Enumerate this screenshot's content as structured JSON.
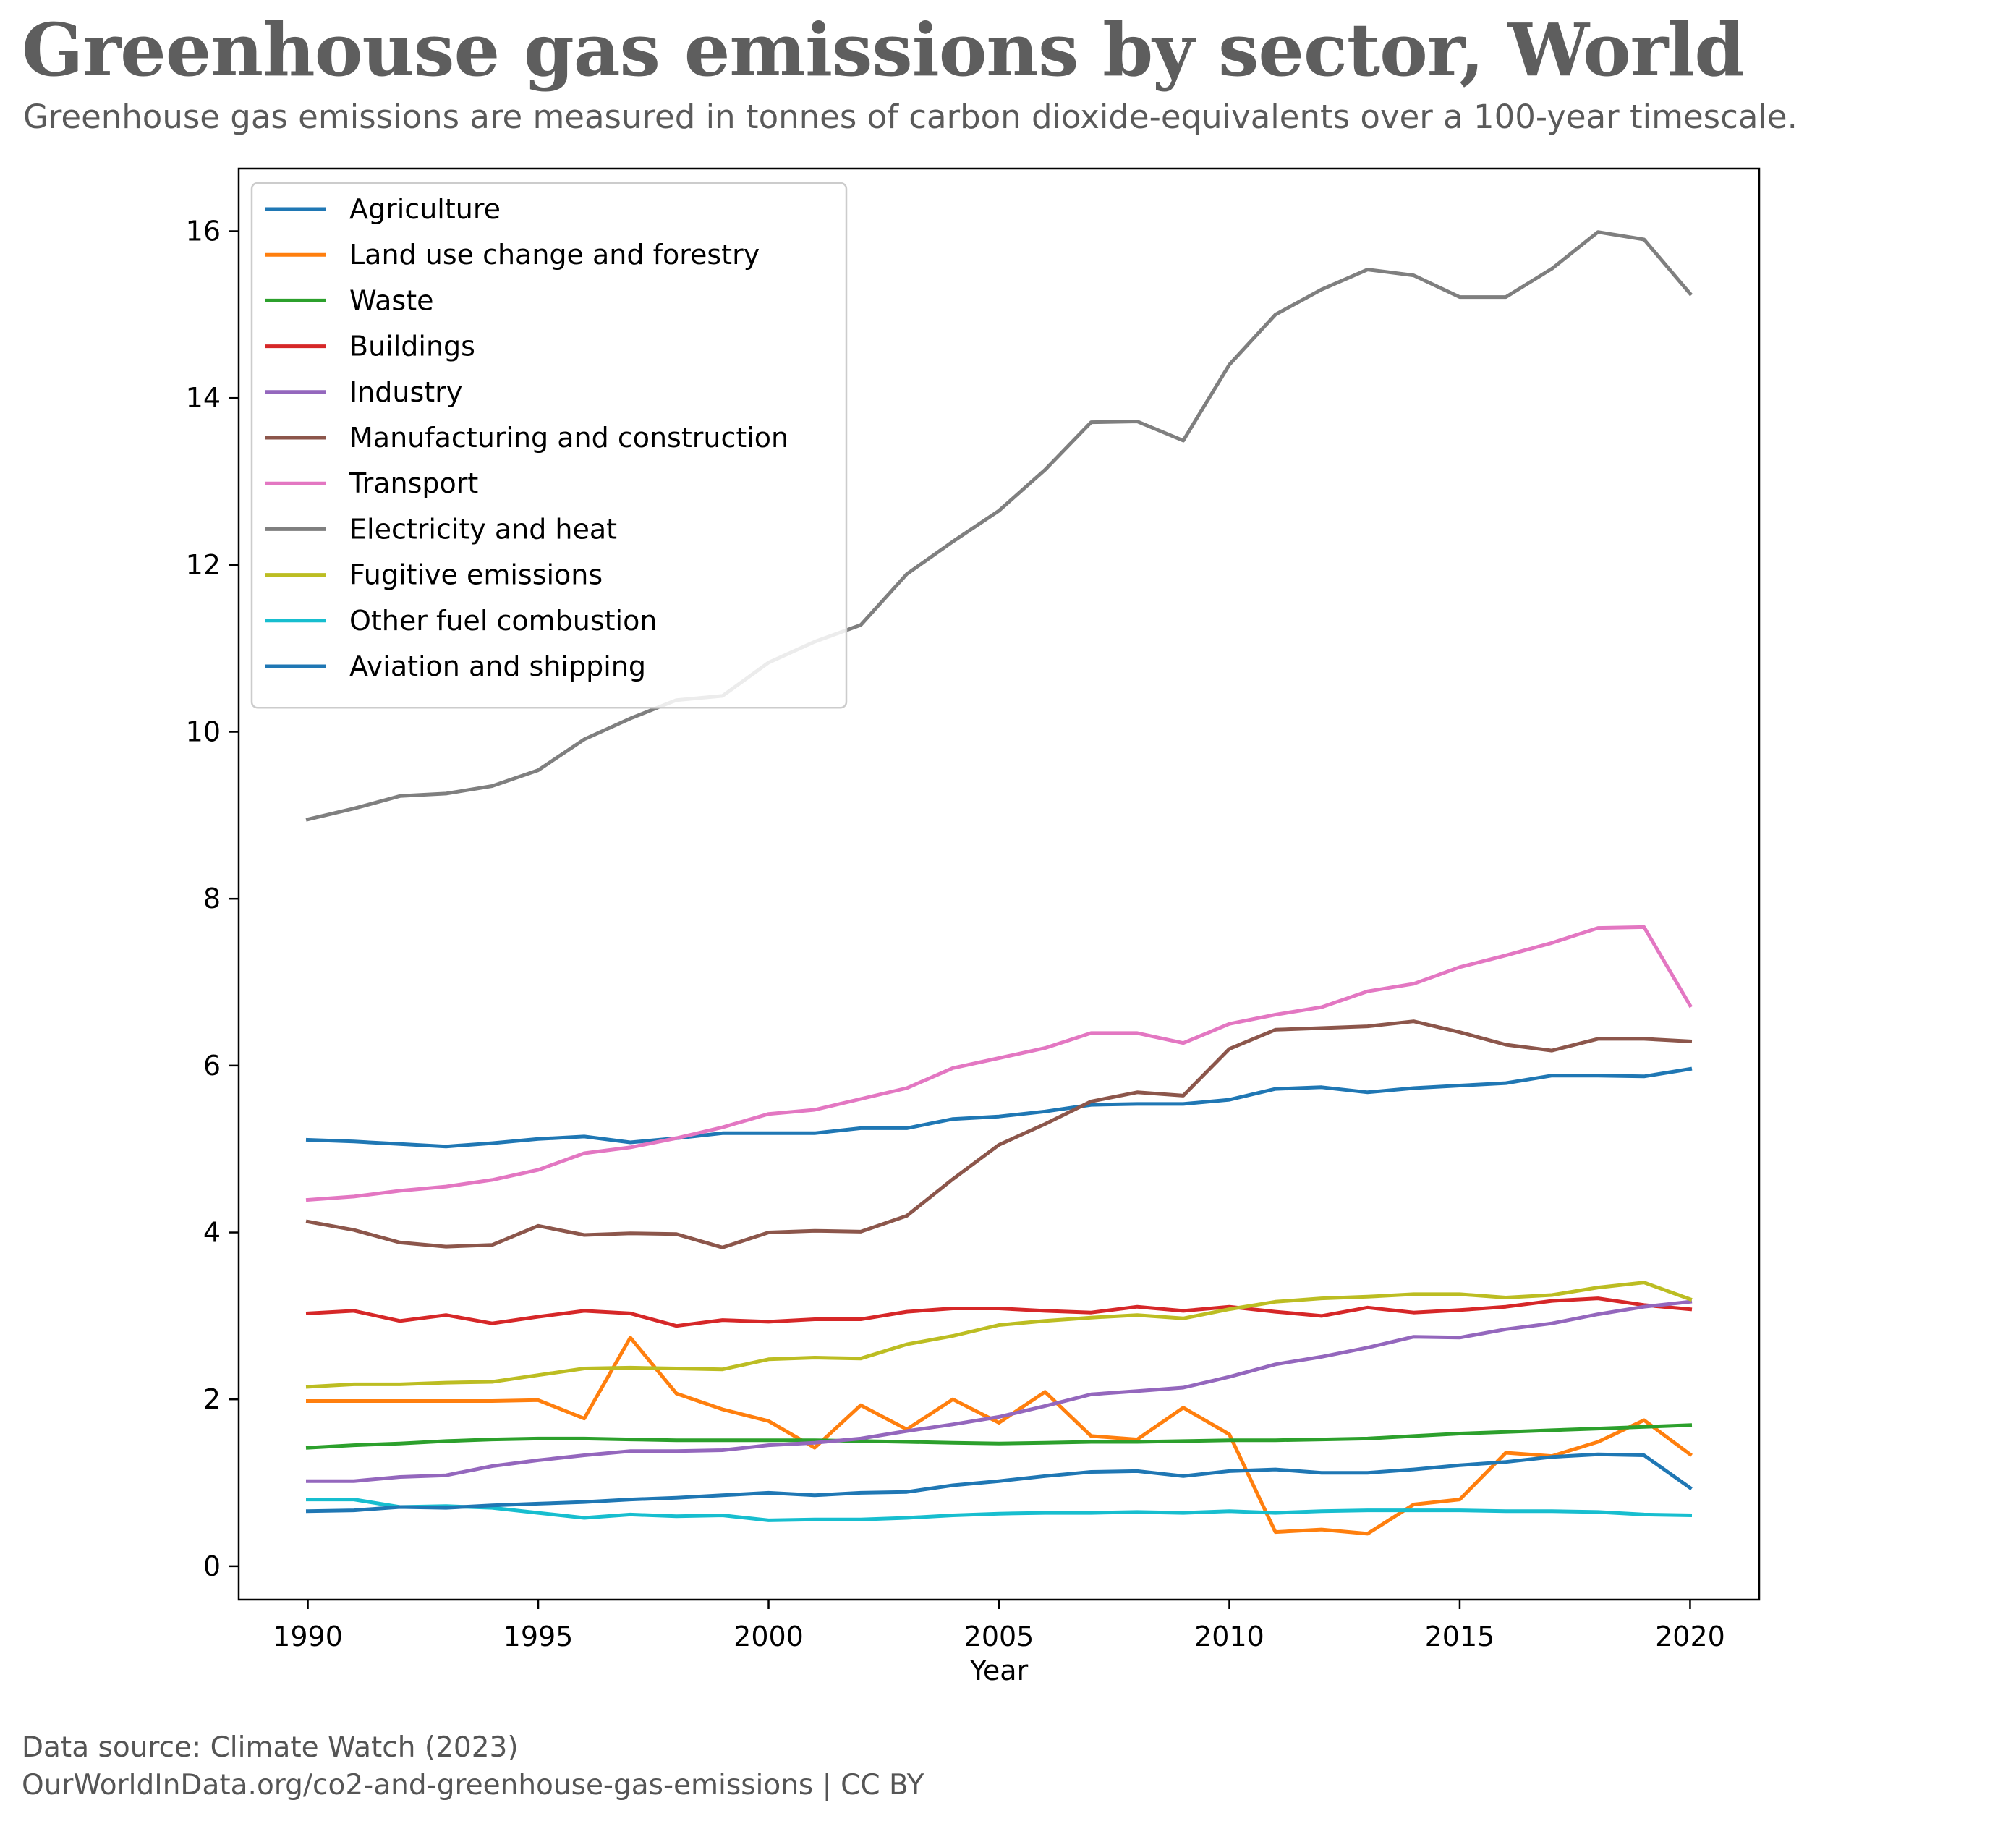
{
  "header": {
    "title": "Greenhouse gas emissions by sector, World",
    "subtitle": "Greenhouse gas emissions are measured in tonnes of carbon dioxide-equivalents over a 100-year timescale."
  },
  "footer": {
    "source": "Data source: Climate Watch (2023)",
    "url": "OurWorldInData.org/co2-and-greenhouse-gas-emissions | CC BY"
  },
  "chart_data": {
    "type": "line",
    "xlabel": "Year",
    "ylabel": "",
    "xlim": [
      1988.5,
      2021.5
    ],
    "ylim": [
      -0.4,
      16.75
    ],
    "x_ticks": [
      1990,
      1995,
      2000,
      2005,
      2010,
      2015,
      2020
    ],
    "y_ticks": [
      0,
      2,
      4,
      6,
      8,
      10,
      12,
      14,
      16
    ],
    "grid": false,
    "legend_position": "top-left",
    "x": [
      1990,
      1991,
      1992,
      1993,
      1994,
      1995,
      1996,
      1997,
      1998,
      1999,
      2000,
      2001,
      2002,
      2003,
      2004,
      2005,
      2006,
      2007,
      2008,
      2009,
      2010,
      2011,
      2012,
      2013,
      2014,
      2015,
      2016,
      2017,
      2018,
      2019,
      2020
    ],
    "series": [
      {
        "name": "Agriculture",
        "color": "#1f77b4",
        "values": [
          5.11,
          5.09,
          5.06,
          5.03,
          5.07,
          5.12,
          5.15,
          5.08,
          5.13,
          5.19,
          5.19,
          5.19,
          5.25,
          5.25,
          5.36,
          5.39,
          5.45,
          5.53,
          5.54,
          5.54,
          5.59,
          5.72,
          5.74,
          5.68,
          5.73,
          5.76,
          5.79,
          5.88,
          5.88,
          5.87,
          5.96
        ]
      },
      {
        "name": "Land use change and forestry",
        "color": "#ff7f0e",
        "values": [
          1.98,
          1.98,
          1.98,
          1.98,
          1.98,
          1.99,
          1.77,
          2.74,
          2.07,
          1.88,
          1.74,
          1.42,
          1.93,
          1.64,
          2.0,
          1.72,
          2.09,
          1.56,
          1.52,
          1.9,
          1.58,
          0.41,
          0.44,
          0.39,
          0.74,
          0.8,
          1.36,
          1.32,
          1.49,
          1.75,
          1.34
        ]
      },
      {
        "name": "Waste",
        "color": "#2ca02c",
        "values": [
          1.42,
          1.45,
          1.47,
          1.5,
          1.52,
          1.53,
          1.53,
          1.52,
          1.51,
          1.51,
          1.51,
          1.51,
          1.5,
          1.49,
          1.48,
          1.47,
          1.48,
          1.49,
          1.49,
          1.5,
          1.51,
          1.51,
          1.52,
          1.53,
          1.56,
          1.59,
          1.61,
          1.63,
          1.65,
          1.67,
          1.69
        ]
      },
      {
        "name": "Buildings",
        "color": "#d62728",
        "values": [
          3.03,
          3.06,
          2.94,
          3.01,
          2.91,
          2.99,
          3.06,
          3.03,
          2.88,
          2.95,
          2.93,
          2.96,
          2.96,
          3.05,
          3.09,
          3.09,
          3.06,
          3.04,
          3.11,
          3.06,
          3.11,
          3.05,
          3.0,
          3.1,
          3.04,
          3.07,
          3.11,
          3.18,
          3.21,
          3.13,
          3.08
        ]
      },
      {
        "name": "Industry",
        "color": "#9467bd",
        "values": [
          1.02,
          1.02,
          1.07,
          1.09,
          1.2,
          1.27,
          1.33,
          1.38,
          1.38,
          1.39,
          1.45,
          1.48,
          1.53,
          1.62,
          1.7,
          1.79,
          1.92,
          2.06,
          2.1,
          2.14,
          2.27,
          2.42,
          2.51,
          2.62,
          2.75,
          2.74,
          2.84,
          2.91,
          3.02,
          3.11,
          3.17
        ]
      },
      {
        "name": "Manufacturing and construction",
        "color": "#8c564b",
        "values": [
          4.13,
          4.03,
          3.88,
          3.83,
          3.85,
          4.08,
          3.97,
          3.99,
          3.98,
          3.82,
          4.0,
          4.02,
          4.01,
          4.2,
          4.64,
          5.05,
          5.3,
          5.57,
          5.68,
          5.64,
          6.2,
          6.43,
          6.45,
          6.47,
          6.53,
          6.4,
          6.25,
          6.18,
          6.32,
          6.32,
          6.29
        ]
      },
      {
        "name": "Transport",
        "color": "#e377c2",
        "values": [
          4.39,
          4.43,
          4.5,
          4.55,
          4.63,
          4.75,
          4.95,
          5.02,
          5.13,
          5.26,
          5.42,
          5.47,
          5.6,
          5.73,
          5.97,
          6.09,
          6.21,
          6.39,
          6.39,
          6.27,
          6.5,
          6.61,
          6.7,
          6.89,
          6.98,
          7.18,
          7.32,
          7.47,
          7.65,
          7.66,
          6.72
        ]
      },
      {
        "name": "Electricity and heat",
        "color": "#7f7f7f",
        "values": [
          8.95,
          9.08,
          9.23,
          9.26,
          9.35,
          9.54,
          9.91,
          10.16,
          10.38,
          10.43,
          10.83,
          11.08,
          11.28,
          11.89,
          12.28,
          12.65,
          13.14,
          13.71,
          13.72,
          13.49,
          14.4,
          15.0,
          15.3,
          15.54,
          15.47,
          15.21,
          15.21,
          15.55,
          15.99,
          15.9,
          15.25
        ]
      },
      {
        "name": "Fugitive emissions",
        "color": "#bcbd22",
        "values": [
          2.15,
          2.18,
          2.18,
          2.2,
          2.21,
          2.29,
          2.37,
          2.38,
          2.37,
          2.36,
          2.48,
          2.5,
          2.49,
          2.66,
          2.76,
          2.89,
          2.94,
          2.98,
          3.01,
          2.97,
          3.08,
          3.17,
          3.21,
          3.23,
          3.26,
          3.26,
          3.22,
          3.25,
          3.34,
          3.4,
          3.2
        ]
      },
      {
        "name": "Other fuel combustion",
        "color": "#17becf",
        "values": [
          0.8,
          0.8,
          0.71,
          0.72,
          0.7,
          0.64,
          0.58,
          0.62,
          0.6,
          0.61,
          0.55,
          0.56,
          0.56,
          0.58,
          0.61,
          0.63,
          0.64,
          0.64,
          0.65,
          0.64,
          0.66,
          0.64,
          0.66,
          0.67,
          0.67,
          0.67,
          0.66,
          0.66,
          0.65,
          0.62,
          0.61
        ]
      },
      {
        "name": "Aviation and shipping",
        "color": "#1f77b4",
        "values": [
          0.66,
          0.67,
          0.71,
          0.7,
          0.73,
          0.75,
          0.77,
          0.8,
          0.82,
          0.85,
          0.88,
          0.85,
          0.88,
          0.89,
          0.97,
          1.02,
          1.08,
          1.13,
          1.14,
          1.08,
          1.14,
          1.16,
          1.12,
          1.12,
          1.16,
          1.21,
          1.25,
          1.31,
          1.34,
          1.33,
          0.94
        ]
      }
    ]
  }
}
